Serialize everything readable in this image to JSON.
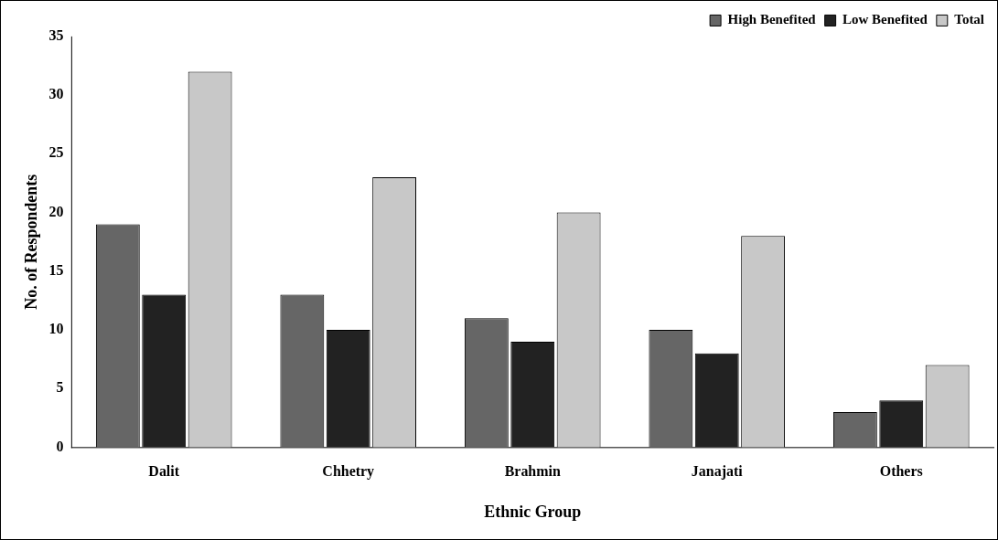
{
  "chart_data": {
    "type": "bar",
    "xlabel": "Ethnic Group",
    "ylabel": "No. of Respondents",
    "categories": [
      "Dalit",
      "Chhetry",
      "Brahmin",
      "Janajati",
      "Others"
    ],
    "series": [
      {
        "name": "High Benefited",
        "color": "#666666",
        "values": [
          19,
          13,
          11,
          10,
          3
        ]
      },
      {
        "name": "Low Benefited",
        "color": "#222222",
        "values": [
          13,
          10,
          9,
          8,
          4
        ]
      },
      {
        "name": "Total",
        "color": "#c8c8c8",
        "values": [
          32,
          23,
          20,
          18,
          7
        ]
      }
    ],
    "ylim": [
      0,
      35
    ],
    "yticks": [
      0,
      5,
      10,
      15,
      20,
      25,
      30,
      35
    ],
    "grid": false,
    "legend": "top right"
  }
}
